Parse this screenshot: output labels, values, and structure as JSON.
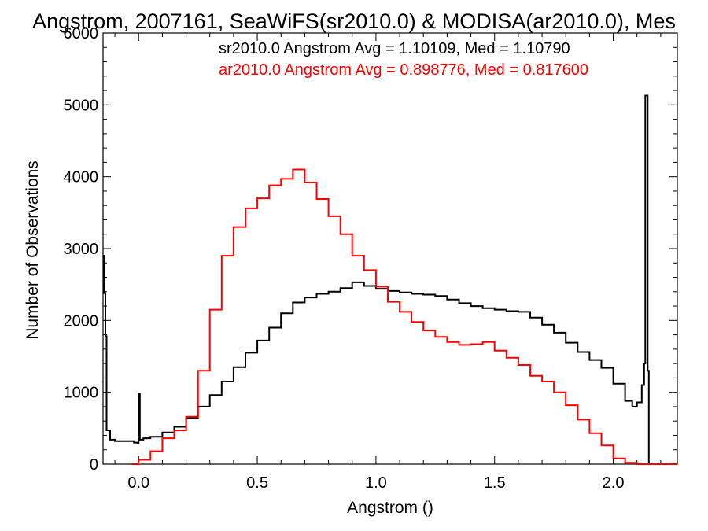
{
  "chart_data": {
    "type": "line",
    "title": "Angstrom, 2007161, SeaWiFS(sr2010.0) & MODISA(ar2010.0), Mes",
    "xlabel": "Angstrom ()",
    "ylabel": "Number of Observations",
    "xlim": [
      -0.15,
      2.27
    ],
    "ylim": [
      0,
      6000
    ],
    "x_ticks": [
      0.0,
      0.5,
      1.0,
      1.5,
      2.0
    ],
    "x_tick_labels": [
      "0.0",
      "0.5",
      "1.0",
      "1.5",
      "2.0"
    ],
    "y_ticks": [
      0,
      1000,
      2000,
      3000,
      4000,
      5000,
      6000
    ],
    "y_tick_labels": [
      "0",
      "1000",
      "2000",
      "3000",
      "4000",
      "5000",
      "6000"
    ],
    "grid": false,
    "legend_position": "top-right",
    "step": true,
    "series": [
      {
        "name": "sr2010.0 Angstrom Avg = 1.10109, Med = 1.10790",
        "color": "#000000",
        "points": [
          [
            -0.15,
            2900
          ],
          [
            -0.145,
            2380
          ],
          [
            -0.14,
            1780
          ],
          [
            -0.135,
            470
          ],
          [
            -0.12,
            340
          ],
          [
            -0.1,
            320
          ],
          [
            -0.05,
            320
          ],
          [
            -0.02,
            300
          ],
          [
            -0.005,
            290
          ],
          [
            0.0,
            980
          ],
          [
            0.005,
            340
          ],
          [
            0.02,
            360
          ],
          [
            0.05,
            380
          ],
          [
            0.1,
            440
          ],
          [
            0.15,
            520
          ],
          [
            0.2,
            640
          ],
          [
            0.25,
            800
          ],
          [
            0.3,
            960
          ],
          [
            0.35,
            1150
          ],
          [
            0.4,
            1350
          ],
          [
            0.45,
            1550
          ],
          [
            0.5,
            1720
          ],
          [
            0.55,
            1900
          ],
          [
            0.6,
            2100
          ],
          [
            0.65,
            2250
          ],
          [
            0.7,
            2320
          ],
          [
            0.75,
            2370
          ],
          [
            0.8,
            2400
          ],
          [
            0.85,
            2450
          ],
          [
            0.9,
            2530
          ],
          [
            0.95,
            2480
          ],
          [
            1.0,
            2440
          ],
          [
            1.05,
            2410
          ],
          [
            1.1,
            2390
          ],
          [
            1.15,
            2370
          ],
          [
            1.2,
            2360
          ],
          [
            1.25,
            2340
          ],
          [
            1.3,
            2290
          ],
          [
            1.35,
            2240
          ],
          [
            1.4,
            2200
          ],
          [
            1.45,
            2170
          ],
          [
            1.5,
            2150
          ],
          [
            1.55,
            2130
          ],
          [
            1.6,
            2120
          ],
          [
            1.65,
            2040
          ],
          [
            1.7,
            1940
          ],
          [
            1.75,
            1830
          ],
          [
            1.8,
            1690
          ],
          [
            1.85,
            1560
          ],
          [
            1.9,
            1450
          ],
          [
            1.95,
            1340
          ],
          [
            2.0,
            1120
          ],
          [
            2.05,
            880
          ],
          [
            2.08,
            800
          ],
          [
            2.1,
            860
          ],
          [
            2.12,
            1100
          ],
          [
            2.13,
            1400
          ],
          [
            2.135,
            5130
          ],
          [
            2.145,
            1300
          ],
          [
            2.15,
            0
          ],
          [
            2.27,
            0
          ]
        ]
      },
      {
        "name": "ar2010.0 Angstrom Avg = 0.898776, Med = 0.817600",
        "color": "#ff0000",
        "points": [
          [
            -0.03,
            0
          ],
          [
            0.0,
            60
          ],
          [
            0.05,
            180
          ],
          [
            0.1,
            360
          ],
          [
            0.15,
            470
          ],
          [
            0.2,
            660
          ],
          [
            0.25,
            1300
          ],
          [
            0.3,
            2150
          ],
          [
            0.35,
            2900
          ],
          [
            0.4,
            3300
          ],
          [
            0.45,
            3560
          ],
          [
            0.5,
            3700
          ],
          [
            0.55,
            3880
          ],
          [
            0.6,
            3970
          ],
          [
            0.65,
            4100
          ],
          [
            0.7,
            3920
          ],
          [
            0.75,
            3690
          ],
          [
            0.8,
            3450
          ],
          [
            0.85,
            3200
          ],
          [
            0.9,
            2900
          ],
          [
            0.95,
            2700
          ],
          [
            1.0,
            2470
          ],
          [
            1.05,
            2260
          ],
          [
            1.1,
            2120
          ],
          [
            1.15,
            1980
          ],
          [
            1.2,
            1860
          ],
          [
            1.25,
            1770
          ],
          [
            1.3,
            1700
          ],
          [
            1.35,
            1660
          ],
          [
            1.4,
            1670
          ],
          [
            1.45,
            1700
          ],
          [
            1.5,
            1580
          ],
          [
            1.55,
            1480
          ],
          [
            1.6,
            1380
          ],
          [
            1.65,
            1230
          ],
          [
            1.7,
            1150
          ],
          [
            1.75,
            1000
          ],
          [
            1.8,
            820
          ],
          [
            1.85,
            620
          ],
          [
            1.9,
            430
          ],
          [
            1.95,
            260
          ],
          [
            2.0,
            80
          ],
          [
            2.05,
            20
          ],
          [
            2.1,
            0
          ],
          [
            2.27,
            0
          ]
        ]
      }
    ]
  }
}
